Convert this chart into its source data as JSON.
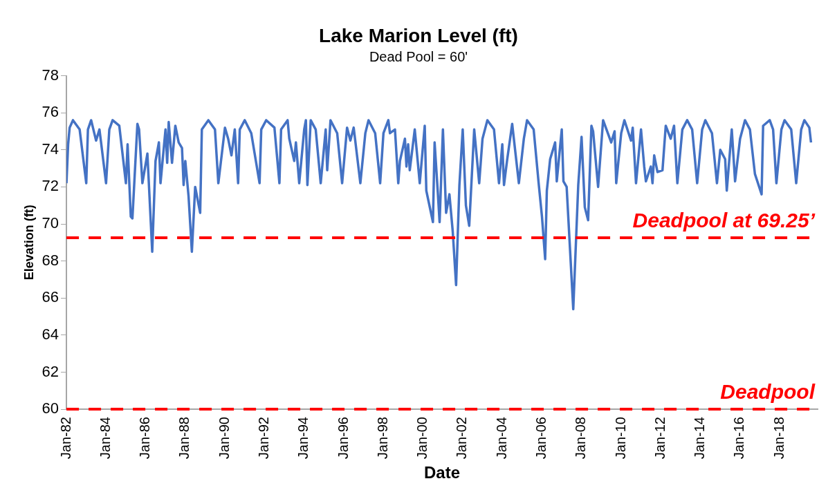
{
  "chart_data": {
    "type": "line",
    "title": "Lake Marion Level (ft)",
    "subtitle": "Dead Pool = 60'",
    "xlabel": "Date",
    "ylabel": "Elevation (ft)",
    "x": [
      "1982-01",
      "1982-02",
      "1982-03",
      "1982-05",
      "1982-09",
      "1983-01",
      "1983-02",
      "1983-04",
      "1983-07",
      "1983-09",
      "1983-10",
      "1984-01",
      "1984-03",
      "1984-05",
      "1984-09",
      "1985-01",
      "1985-02",
      "1985-04",
      "1985-05",
      "1985-08",
      "1985-09",
      "1985-11",
      "1986-02",
      "1986-05",
      "1986-07",
      "1986-09",
      "1986-10",
      "1987-01",
      "1987-02",
      "1987-03",
      "1987-05",
      "1987-07",
      "1987-09",
      "1987-11",
      "1987-12",
      "1988-01",
      "1988-03",
      "1988-05",
      "1988-07",
      "1988-10",
      "1988-11",
      "1989-03",
      "1989-07",
      "1989-09",
      "1990-01",
      "1990-03",
      "1990-05",
      "1990-07",
      "1990-09",
      "1990-10",
      "1991-01",
      "1991-05",
      "1991-10",
      "1991-11",
      "1992-02",
      "1992-07",
      "1992-10",
      "1992-11",
      "1993-03",
      "1993-04",
      "1993-07",
      "1993-08",
      "1993-10",
      "1994-01",
      "1994-02",
      "1994-03",
      "1994-05",
      "1994-08",
      "1994-11",
      "1995-02",
      "1995-03",
      "1995-05",
      "1995-09",
      "1995-12",
      "1996-03",
      "1996-05",
      "1996-07",
      "1996-11",
      "1997-02",
      "1997-04",
      "1997-08",
      "1997-11",
      "1998-01",
      "1998-04",
      "1998-05",
      "1998-08",
      "1998-10",
      "1998-11",
      "1999-02",
      "1999-03",
      "1999-04",
      "1999-05",
      "1999-08",
      "1999-11",
      "2000-02",
      "2000-03",
      "2000-07",
      "2000-08",
      "2000-10",
      "2000-11",
      "2001-01",
      "2001-03",
      "2001-05",
      "2001-07",
      "2001-09",
      "2001-11",
      "2002-01",
      "2002-03",
      "2002-05",
      "2002-08",
      "2002-11",
      "2003-01",
      "2003-04",
      "2003-08",
      "2003-11",
      "2004-01",
      "2004-02",
      "2004-04",
      "2004-07",
      "2004-11",
      "2005-02",
      "2005-04",
      "2005-08",
      "2005-11",
      "2006-01",
      "2006-03",
      "2006-04",
      "2006-06",
      "2006-09",
      "2006-10",
      "2007-01",
      "2007-02",
      "2007-04",
      "2007-08",
      "2007-11",
      "2008-01",
      "2008-03",
      "2008-05",
      "2008-07",
      "2008-08",
      "2008-11",
      "2009-02",
      "2009-07",
      "2009-09",
      "2009-10",
      "2010-01",
      "2010-03",
      "2010-07",
      "2010-08",
      "2010-10",
      "2011-01",
      "2011-03",
      "2011-04",
      "2011-07",
      "2011-08",
      "2011-09",
      "2011-11",
      "2012-02",
      "2012-04",
      "2012-07",
      "2012-09",
      "2012-11",
      "2013-02",
      "2013-05",
      "2013-08",
      "2013-11",
      "2014-02",
      "2014-04",
      "2014-08",
      "2014-11",
      "2015-01",
      "2015-04",
      "2015-05",
      "2015-08",
      "2015-10",
      "2016-01",
      "2016-04",
      "2016-07",
      "2016-10",
      "2017-02",
      "2017-03",
      "2017-07",
      "2017-09",
      "2017-11",
      "2018-02",
      "2018-04",
      "2018-08",
      "2018-11",
      "2019-02",
      "2019-04",
      "2019-07",
      "2019-08"
    ],
    "series": [
      {
        "color": "#4472c4",
        "values": [
          72.2,
          74.3,
          75.2,
          75.6,
          75.1,
          72.2,
          75.1,
          75.6,
          74.5,
          75.1,
          74.4,
          72.2,
          75.1,
          75.6,
          75.3,
          72.2,
          74.3,
          70.4,
          70.3,
          75.4,
          75.1,
          72.2,
          73.8,
          68.5,
          73.4,
          74.4,
          72.2,
          75.1,
          73.3,
          75.5,
          73.3,
          75.3,
          74.4,
          74.1,
          72.1,
          73.4,
          71.5,
          68.5,
          72.0,
          70.6,
          75.1,
          75.6,
          75.1,
          72.2,
          75.2,
          74.6,
          73.7,
          75.1,
          72.2,
          75.1,
          75.6,
          74.9,
          72.2,
          75.1,
          75.6,
          75.2,
          72.2,
          75.1,
          75.6,
          74.6,
          73.4,
          74.4,
          72.2,
          75.1,
          75.6,
          72.1,
          75.6,
          75.1,
          72.2,
          75.1,
          72.9,
          75.6,
          74.9,
          72.2,
          75.2,
          74.5,
          75.2,
          72.2,
          74.9,
          75.6,
          74.9,
          72.2,
          74.9,
          75.6,
          74.9,
          75.1,
          72.2,
          73.4,
          74.6,
          73.1,
          74.3,
          72.9,
          75.1,
          72.2,
          75.3,
          71.8,
          70.1,
          74.4,
          71.6,
          70.1,
          75.1,
          70.6,
          71.6,
          69.6,
          66.7,
          72.1,
          75.1,
          71.0,
          69.9,
          75.1,
          72.2,
          74.6,
          75.6,
          75.1,
          72.2,
          74.3,
          72.1,
          73.5,
          75.4,
          72.2,
          74.6,
          75.6,
          75.1,
          72.2,
          70.4,
          68.1,
          71.8,
          73.5,
          74.4,
          72.3,
          75.1,
          72.3,
          72.0,
          65.4,
          72.1,
          74.7,
          70.9,
          70.2,
          75.3,
          75.0,
          72.0,
          75.6,
          74.4,
          75.0,
          72.2,
          74.9,
          75.6,
          74.5,
          75.2,
          72.2,
          75.1,
          73.1,
          72.3,
          73.1,
          72.2,
          73.7,
          72.8,
          72.9,
          75.3,
          74.6,
          75.3,
          72.2,
          75.1,
          75.6,
          75.1,
          72.2,
          75.1,
          75.6,
          74.9,
          72.2,
          74.0,
          73.5,
          71.8,
          75.1,
          72.3,
          74.6,
          75.6,
          75.1,
          72.7,
          71.6,
          75.3,
          75.6,
          75.1,
          72.2,
          75.1,
          75.6,
          75.1,
          72.2,
          75.1,
          75.6,
          75.2,
          74.4
        ]
      }
    ],
    "xlim": [
      "1982-01",
      "2019-12"
    ],
    "xticks": [
      {
        "value": "1982-01",
        "label": "Jan-82"
      },
      {
        "value": "1984-01",
        "label": "Jan-84"
      },
      {
        "value": "1986-01",
        "label": "Jan-86"
      },
      {
        "value": "1988-01",
        "label": "Jan-88"
      },
      {
        "value": "1990-01",
        "label": "Jan-90"
      },
      {
        "value": "1992-01",
        "label": "Jan-92"
      },
      {
        "value": "1994-01",
        "label": "Jan-94"
      },
      {
        "value": "1996-01",
        "label": "Jan-96"
      },
      {
        "value": "1998-01",
        "label": "Jan-98"
      },
      {
        "value": "2000-01",
        "label": "Jan-00"
      },
      {
        "value": "2002-01",
        "label": "Jan-02"
      },
      {
        "value": "2004-01",
        "label": "Jan-04"
      },
      {
        "value": "2006-01",
        "label": "Jan-06"
      },
      {
        "value": "2008-01",
        "label": "Jan-08"
      },
      {
        "value": "2010-01",
        "label": "Jan-10"
      },
      {
        "value": "2012-01",
        "label": "Jan-12"
      },
      {
        "value": "2014-01",
        "label": "Jan-14"
      },
      {
        "value": "2016-01",
        "label": "Jan-16"
      },
      {
        "value": "2018-01",
        "label": "Jan-18"
      }
    ],
    "ylim": [
      60,
      78
    ],
    "yticks": [
      60,
      62,
      64,
      66,
      68,
      70,
      72,
      74,
      76,
      78
    ],
    "ref_lines": [
      {
        "axis": "y",
        "value": 69.25,
        "label": "Deadpool at 69.25’",
        "color": "#ff0000",
        "line_style": "dashed"
      },
      {
        "axis": "y",
        "value": 60,
        "label": "Deadpool",
        "color": "#ff0000",
        "line_style": "dashed"
      }
    ],
    "grid": false,
    "legend": false,
    "marker": "none",
    "line_style": "solid"
  }
}
